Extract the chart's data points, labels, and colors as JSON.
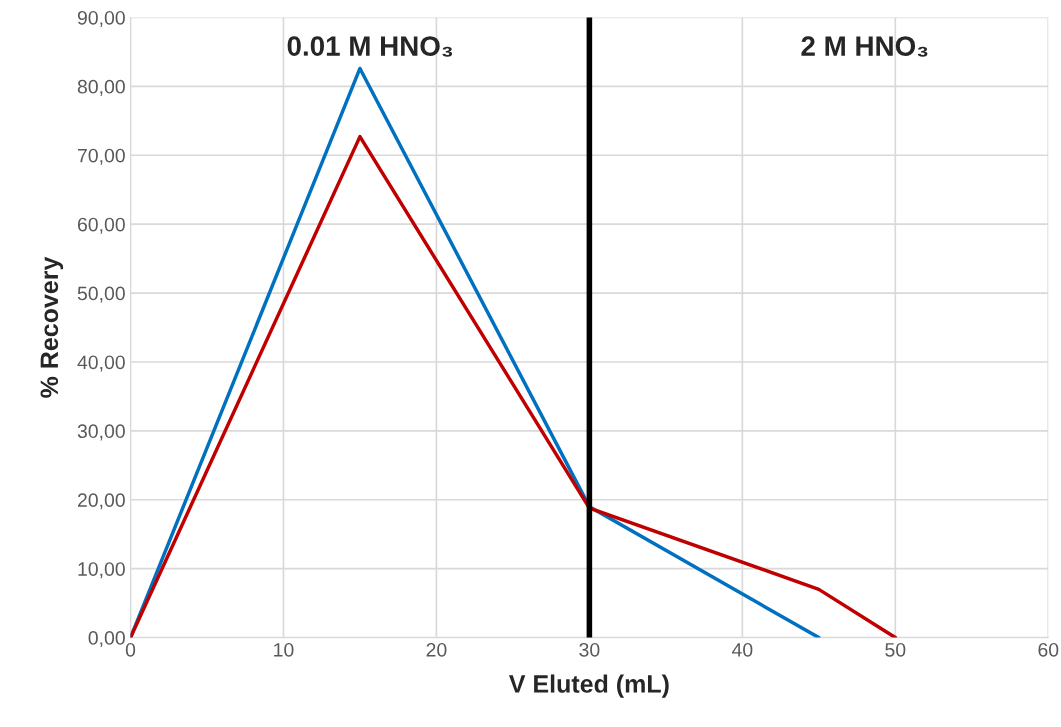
{
  "chart_data": {
    "type": "line",
    "xlabel": "V Eluted (mL)",
    "ylabel": "% Recovery",
    "series": [
      {
        "color": "#0070c0",
        "x": [
          0,
          15,
          30,
          45
        ],
        "values": [
          0,
          82.6,
          19,
          0
        ]
      },
      {
        "color": "#c00000",
        "x": [
          0,
          15,
          30,
          45,
          50
        ],
        "values": [
          0,
          72.7,
          18.8,
          7,
          0
        ]
      }
    ],
    "xlim": [
      0,
      60
    ],
    "xticks": [
      0,
      10,
      20,
      30,
      40,
      50,
      60
    ],
    "ylim": [
      0,
      90
    ],
    "yticks": [
      {
        "value": 0,
        "label": "0,00"
      },
      {
        "value": 10,
        "label": "10,00"
      },
      {
        "value": 20,
        "label": "20,00"
      },
      {
        "value": 30,
        "label": "30,00"
      },
      {
        "value": 40,
        "label": "40,00"
      },
      {
        "value": 50,
        "label": "50,00"
      },
      {
        "value": 60,
        "label": "60,00"
      },
      {
        "value": 70,
        "label": "70,00"
      },
      {
        "value": 80,
        "label": "80,00"
      },
      {
        "value": 90,
        "label": "90,00"
      }
    ],
    "ref_lines": [
      {
        "axis": "x",
        "value": 30,
        "color": "#000000"
      }
    ],
    "annotations": [
      "0.01 M HNO₃",
      "2 M HNO₃"
    ],
    "grid": true,
    "marker": "none",
    "line_style": "solid"
  }
}
